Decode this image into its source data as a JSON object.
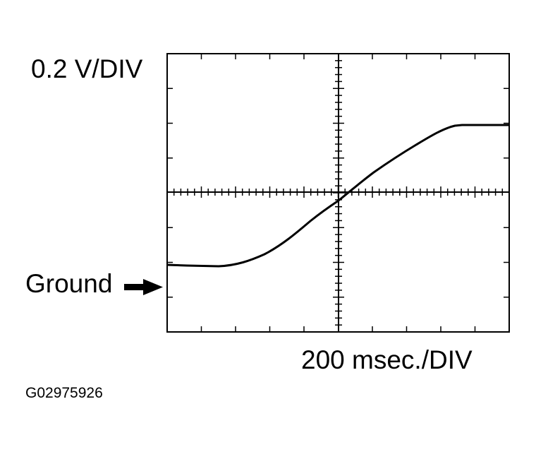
{
  "scope": {
    "vertical_scale": "0.2 V/DIV",
    "ground_label": "Ground",
    "horizontal_scale": "200 msec./DIV",
    "figure_id": "G02975926"
  }
}
